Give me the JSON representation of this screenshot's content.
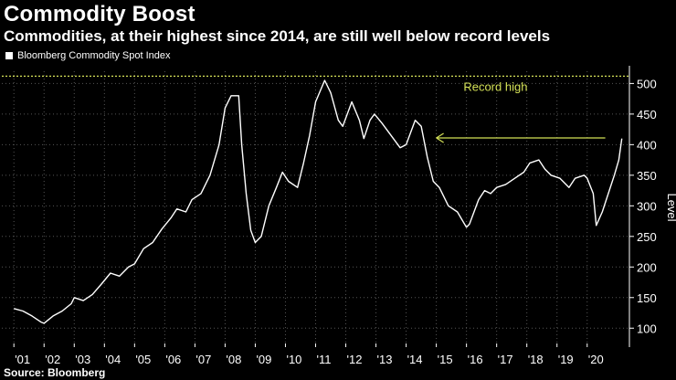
{
  "header": {
    "title": "Commodity Boost",
    "subtitle": "Commodities, at their highest since 2014, are still well below record levels"
  },
  "legend": {
    "label": "Bloomberg Commodity Spot Index"
  },
  "footer": {
    "source": "Source: Bloomberg"
  },
  "colors": {
    "background": "#000000",
    "line": "#ffffff",
    "record": "#d4e157",
    "grid": "#555555"
  },
  "chart_data": {
    "type": "line",
    "title": "Commodity Boost",
    "series": [
      {
        "name": "Bloomberg Commodity Spot Index",
        "x": [
          2001.0,
          2001.3,
          2001.6,
          2001.9,
          2002.0,
          2002.3,
          2002.6,
          2002.9,
          2003.0,
          2003.3,
          2003.6,
          2003.9,
          2004.2,
          2004.5,
          2004.8,
          2005.0,
          2005.3,
          2005.6,
          2005.9,
          2006.2,
          2006.4,
          2006.7,
          2006.9,
          2007.2,
          2007.5,
          2007.8,
          2008.0,
          2008.2,
          2008.45,
          2008.55,
          2008.7,
          2008.85,
          2009.0,
          2009.2,
          2009.45,
          2009.7,
          2009.9,
          2010.1,
          2010.4,
          2010.6,
          2010.8,
          2011.0,
          2011.3,
          2011.5,
          2011.75,
          2011.9,
          2012.2,
          2012.45,
          2012.6,
          2012.8,
          2012.95,
          2013.2,
          2013.5,
          2013.8,
          2014.0,
          2014.3,
          2014.5,
          2014.7,
          2014.9,
          2015.1,
          2015.4,
          2015.7,
          2016.0,
          2016.1,
          2016.4,
          2016.6,
          2016.8,
          2017.0,
          2017.3,
          2017.6,
          2017.9,
          2018.1,
          2018.4,
          2018.6,
          2018.8,
          2019.1,
          2019.4,
          2019.6,
          2019.9,
          2020.0,
          2020.2,
          2020.3,
          2020.5,
          2020.7,
          2020.9,
          2021.05,
          2021.15
        ],
        "values": [
          132,
          128,
          120,
          110,
          108,
          120,
          128,
          140,
          150,
          145,
          155,
          172,
          190,
          185,
          200,
          205,
          230,
          240,
          262,
          280,
          295,
          290,
          310,
          320,
          350,
          400,
          460,
          480,
          480,
          400,
          320,
          260,
          240,
          250,
          300,
          330,
          355,
          340,
          330,
          370,
          415,
          470,
          505,
          485,
          440,
          430,
          470,
          440,
          410,
          440,
          450,
          435,
          415,
          395,
          400,
          440,
          430,
          380,
          340,
          330,
          300,
          290,
          265,
          270,
          310,
          325,
          320,
          330,
          335,
          345,
          355,
          370,
          375,
          360,
          350,
          345,
          330,
          345,
          350,
          345,
          320,
          268,
          290,
          320,
          350,
          375,
          410
        ]
      }
    ],
    "xlabel": "",
    "ylabel": "Level",
    "xlim": [
      2000.6,
      2021.4
    ],
    "ylim": [
      75,
      520
    ],
    "x_ticks": [
      2001,
      2002,
      2003,
      2004,
      2005,
      2006,
      2007,
      2008,
      2009,
      2010,
      2011,
      2012,
      2013,
      2014,
      2015,
      2016,
      2017,
      2018,
      2019,
      2020
    ],
    "x_tick_labels": [
      "'01",
      "'02",
      "'03",
      "'04",
      "'05",
      "'06",
      "'07",
      "'08",
      "'09",
      "'10",
      "'11",
      "'12",
      "'13",
      "'14",
      "'15",
      "'16",
      "'17",
      "'18",
      "'19",
      "'20"
    ],
    "y_ticks": [
      100,
      150,
      200,
      250,
      300,
      350,
      400,
      450,
      500
    ],
    "record_high": {
      "value": 512,
      "label": "Record high"
    },
    "arrow": {
      "from_x": 2020.6,
      "to_x": 2015.0,
      "value": 411
    },
    "grid": true
  }
}
